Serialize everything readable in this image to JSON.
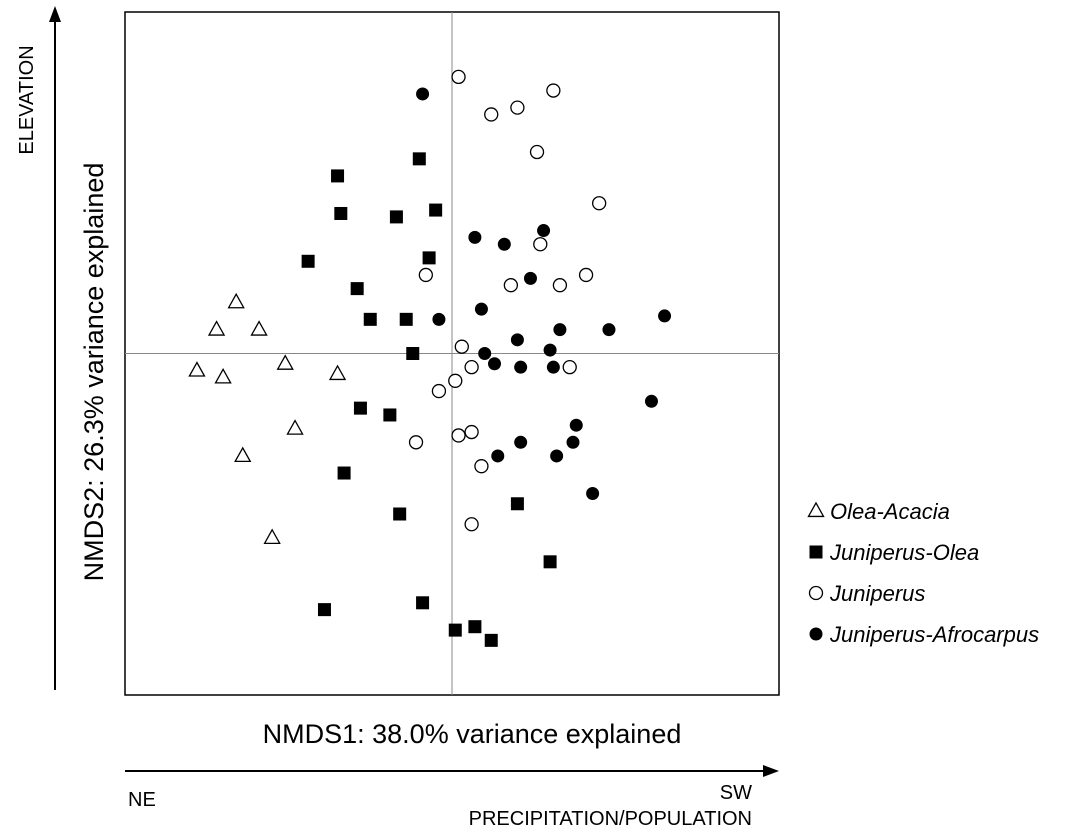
{
  "chart_data": {
    "type": "scatter",
    "title": "",
    "xlabel": "NMDS1: 38.0% variance explained",
    "ylabel": "NMDS2: 26.3% variance explained",
    "xlim": [
      -1,
      1
    ],
    "ylim": [
      -1,
      1
    ],
    "grid": false,
    "reference_lines": {
      "x": 0,
      "y": 0
    },
    "legend": {
      "placement": "right",
      "entries": [
        {
          "name": "Olea-Acacia",
          "marker": "open-triangle"
        },
        {
          "name": "Juniperus-Olea",
          "marker": "filled-square"
        },
        {
          "name": "Juniperus",
          "marker": "open-circle"
        },
        {
          "name": "Juniperus-Afrocarpus",
          "marker": "filled-circle"
        }
      ]
    },
    "gradient_axes": {
      "horizontal": {
        "left": "NE",
        "right": "SW",
        "label": "PRECIPITATION/POPULATION"
      },
      "vertical": {
        "label": "ELEVATION"
      }
    },
    "series": [
      {
        "name": "Olea-Acacia",
        "marker": "open-triangle",
        "points": [
          [
            -0.66,
            0.15
          ],
          [
            -0.72,
            0.07
          ],
          [
            -0.59,
            0.07
          ],
          [
            -0.51,
            -0.03
          ],
          [
            -0.78,
            -0.05
          ],
          [
            -0.7,
            -0.07
          ],
          [
            -0.35,
            -0.06
          ],
          [
            -0.48,
            -0.22
          ],
          [
            -0.64,
            -0.3
          ],
          [
            -0.55,
            -0.54
          ]
        ]
      },
      {
        "name": "Juniperus-Olea",
        "marker": "filled-square",
        "points": [
          [
            -0.1,
            0.57
          ],
          [
            -0.35,
            0.52
          ],
          [
            -0.34,
            0.41
          ],
          [
            -0.17,
            0.4
          ],
          [
            -0.05,
            0.42
          ],
          [
            -0.44,
            0.27
          ],
          [
            -0.29,
            0.19
          ],
          [
            -0.07,
            0.28
          ],
          [
            -0.25,
            0.1
          ],
          [
            -0.14,
            0.1
          ],
          [
            -0.12,
            0.0
          ],
          [
            -0.28,
            -0.16
          ],
          [
            -0.19,
            -0.18
          ],
          [
            -0.33,
            -0.35
          ],
          [
            -0.16,
            -0.47
          ],
          [
            0.2,
            -0.44
          ],
          [
            0.3,
            -0.61
          ],
          [
            -0.39,
            -0.75
          ],
          [
            -0.09,
            -0.73
          ],
          [
            0.01,
            -0.81
          ],
          [
            0.07,
            -0.8
          ],
          [
            0.12,
            -0.84
          ]
        ]
      },
      {
        "name": "Juniperus",
        "marker": "open-circle",
        "points": [
          [
            0.02,
            0.81
          ],
          [
            0.31,
            0.77
          ],
          [
            0.12,
            0.7
          ],
          [
            0.2,
            0.72
          ],
          [
            0.26,
            0.59
          ],
          [
            0.45,
            0.44
          ],
          [
            0.27,
            0.32
          ],
          [
            -0.08,
            0.23
          ],
          [
            0.18,
            0.2
          ],
          [
            0.33,
            0.2
          ],
          [
            0.41,
            0.23
          ],
          [
            0.03,
            0.02
          ],
          [
            0.06,
            -0.04
          ],
          [
            0.36,
            -0.04
          ],
          [
            0.01,
            -0.08
          ],
          [
            -0.04,
            -0.11
          ],
          [
            -0.11,
            -0.26
          ],
          [
            0.02,
            -0.24
          ],
          [
            0.06,
            -0.23
          ],
          [
            0.09,
            -0.33
          ],
          [
            0.06,
            -0.5
          ]
        ]
      },
      {
        "name": "Juniperus-Afrocarpus",
        "marker": "filled-circle",
        "points": [
          [
            -0.09,
            0.76
          ],
          [
            0.07,
            0.34
          ],
          [
            0.16,
            0.32
          ],
          [
            0.28,
            0.36
          ],
          [
            0.24,
            0.22
          ],
          [
            0.09,
            0.13
          ],
          [
            -0.04,
            0.1
          ],
          [
            0.33,
            0.07
          ],
          [
            0.48,
            0.07
          ],
          [
            0.65,
            0.11
          ],
          [
            0.2,
            0.04
          ],
          [
            0.3,
            0.01
          ],
          [
            0.1,
            0.0
          ],
          [
            0.13,
            -0.03
          ],
          [
            0.21,
            -0.04
          ],
          [
            0.31,
            -0.04
          ],
          [
            0.61,
            -0.14
          ],
          [
            0.38,
            -0.21
          ],
          [
            0.37,
            -0.26
          ],
          [
            0.21,
            -0.26
          ],
          [
            0.32,
            -0.3
          ],
          [
            0.14,
            -0.3
          ],
          [
            0.43,
            -0.41
          ]
        ]
      }
    ]
  }
}
